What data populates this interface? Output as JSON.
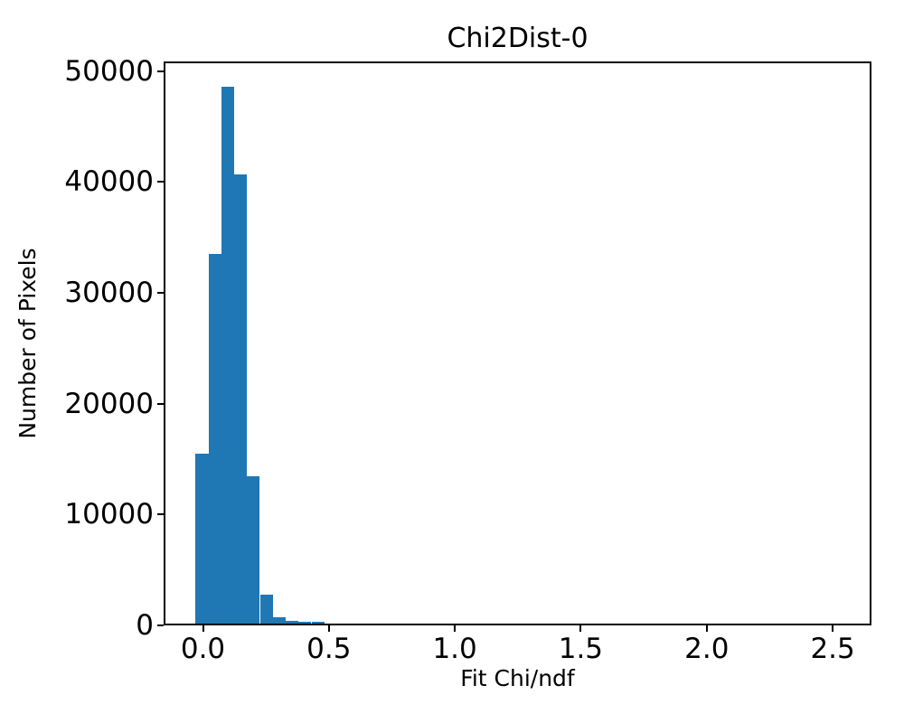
{
  "chart_data": {
    "type": "bar",
    "subtype": "histogram",
    "title": "Chi2Dist-0",
    "xlabel": "Fit Chi/ndf",
    "ylabel": "Number of Pixels",
    "bar_color": "#1f77b4",
    "axis_color": "#000000",
    "background_color": "#ffffff",
    "grid": false,
    "legend": null,
    "xlim": [
      -0.156,
      2.654
    ],
    "ylim": [
      0,
      50855
    ],
    "bin_start": -0.029,
    "bin_width": 0.0511,
    "counts": [
      15300,
      33300,
      48400,
      40500,
      13300,
      2600,
      550,
      220,
      200,
      130
    ],
    "x_tick_values": [
      0.0,
      0.5,
      1.0,
      1.5,
      2.0,
      2.5
    ],
    "x_tick_labels": [
      "0.0",
      "0.5",
      "1.0",
      "1.5",
      "2.0",
      "2.5"
    ],
    "y_tick_values": [
      0,
      10000,
      20000,
      30000,
      40000,
      50000
    ],
    "y_tick_labels": [
      "0",
      "10000",
      "20000",
      "30000",
      "40000",
      "50000"
    ]
  }
}
